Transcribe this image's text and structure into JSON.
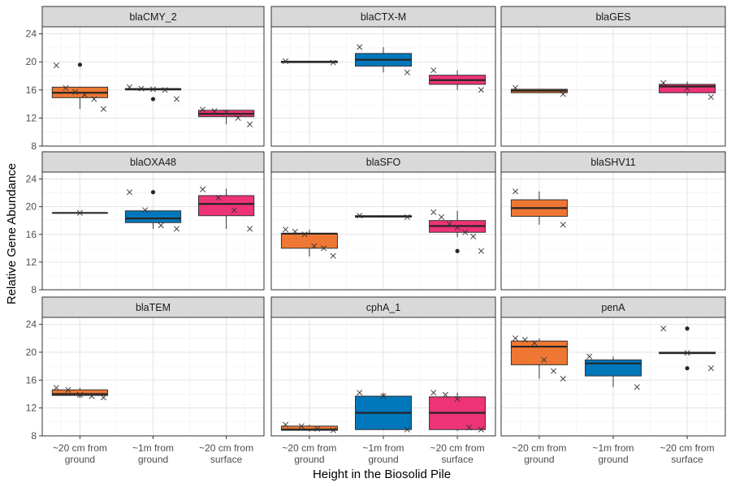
{
  "chart_data": {
    "type": "box",
    "xlabel": "Height in the Biosolid Pile",
    "ylabel": "Relative Gene Abundance",
    "ylim": [
      8,
      25
    ],
    "yticks": [
      8,
      12,
      16,
      20,
      24
    ],
    "grid": true,
    "categories": [
      [
        "~20 cm from",
        "ground"
      ],
      [
        "~1m from",
        "ground"
      ],
      [
        "~20 cm from",
        "surface"
      ]
    ],
    "colors": [
      "#ee7733",
      "#0077bb",
      "#ee3377"
    ],
    "panels": [
      {
        "name": "blaCMY_2",
        "boxes": [
          {
            "cat": 0,
            "q1": 14.9,
            "median": 15.6,
            "q3": 16.4,
            "whisker_low": 13.3,
            "whisker_high": 16.4,
            "outliers": [
              19.6
            ],
            "points": [
              19.5,
              16.3,
              15.7,
              15.3,
              14.7,
              13.3
            ]
          },
          {
            "cat": 1,
            "q1": 16.0,
            "median": 16.1,
            "q3": 16.2,
            "whisker_low": 16.0,
            "whisker_high": 16.2,
            "outliers": [
              14.7
            ],
            "points": [
              16.4,
              16.2,
              16.1,
              16.0,
              14.7
            ]
          },
          {
            "cat": 2,
            "q1": 12.2,
            "median": 12.6,
            "q3": 13.1,
            "whisker_low": 11.1,
            "whisker_high": 13.2,
            "outliers": [],
            "points": [
              13.2,
              13.0,
              12.8,
              12.0,
              11.1
            ]
          }
        ]
      },
      {
        "name": "blaCTX-M",
        "boxes": [
          {
            "cat": 0,
            "q1": 19.9,
            "median": 20.0,
            "q3": 20.1,
            "whisker_low": 19.9,
            "whisker_high": 20.1,
            "outliers": [],
            "points": [
              20.1,
              19.9
            ]
          },
          {
            "cat": 1,
            "q1": 19.4,
            "median": 20.3,
            "q3": 21.2,
            "whisker_low": 18.5,
            "whisker_high": 22.1,
            "outliers": [],
            "points": [
              22.1,
              18.5
            ]
          },
          {
            "cat": 2,
            "q1": 16.8,
            "median": 17.4,
            "q3": 18.1,
            "whisker_low": 16.0,
            "whisker_high": 18.8,
            "outliers": [],
            "points": [
              18.8,
              16.0
            ]
          }
        ]
      },
      {
        "name": "blaGES",
        "boxes": [
          {
            "cat": 0,
            "q1": 15.6,
            "median": 15.9,
            "q3": 16.1,
            "whisker_low": 15.6,
            "whisker_high": 16.1,
            "outliers": [],
            "points": [
              16.3,
              15.4
            ]
          },
          {
            "cat": 2,
            "q1": 15.6,
            "median": 16.5,
            "q3": 16.8,
            "whisker_low": 15.2,
            "whisker_high": 17.2,
            "outliers": [],
            "points": [
              17.0,
              16.2,
              15.0
            ]
          }
        ]
      },
      {
        "name": "blaOXA48",
        "boxes": [
          {
            "cat": 0,
            "q1": 19.1,
            "median": 19.1,
            "q3": 19.1,
            "whisker_low": 19.1,
            "whisker_high": 19.1,
            "outliers": [],
            "points": [
              19.1
            ]
          },
          {
            "cat": 1,
            "q1": 17.7,
            "median": 18.3,
            "q3": 19.4,
            "whisker_low": 16.8,
            "whisker_high": 19.4,
            "outliers": [
              22.1
            ],
            "points": [
              22.1,
              19.5,
              17.3,
              16.8
            ]
          },
          {
            "cat": 2,
            "q1": 18.7,
            "median": 20.4,
            "q3": 21.6,
            "whisker_low": 16.8,
            "whisker_high": 22.6,
            "outliers": [],
            "points": [
              22.5,
              21.3,
              19.5,
              16.8
            ]
          }
        ]
      },
      {
        "name": "blaSFO",
        "boxes": [
          {
            "cat": 0,
            "q1": 14.0,
            "median": 16.1,
            "q3": 16.1,
            "whisker_low": 12.8,
            "whisker_high": 16.7,
            "outliers": [],
            "points": [
              16.7,
              16.4,
              16.0,
              14.3,
              14.0,
              12.9
            ]
          },
          {
            "cat": 1,
            "q1": 18.5,
            "median": 18.6,
            "q3": 18.7,
            "whisker_low": 18.5,
            "whisker_high": 18.7,
            "outliers": [],
            "points": [
              18.7,
              18.5
            ]
          },
          {
            "cat": 2,
            "q1": 16.3,
            "median": 17.2,
            "q3": 18.0,
            "whisker_low": 15.6,
            "whisker_high": 19.4,
            "outliers": [
              13.6
            ],
            "points": [
              19.2,
              18.5,
              17.5,
              17.0,
              16.3,
              15.7,
              13.6
            ]
          }
        ]
      },
      {
        "name": "blaSHV11",
        "boxes": [
          {
            "cat": 0,
            "q1": 18.6,
            "median": 19.8,
            "q3": 21.0,
            "whisker_low": 17.4,
            "whisker_high": 22.2,
            "outliers": [],
            "points": [
              22.2,
              17.4
            ]
          }
        ]
      },
      {
        "name": "blaTEM",
        "boxes": [
          {
            "cat": 0,
            "q1": 13.8,
            "median": 14.0,
            "q3": 14.6,
            "whisker_low": 13.4,
            "whisker_high": 14.9,
            "outliers": [],
            "points": [
              14.9,
              14.6,
              13.9,
              13.7,
              13.5
            ]
          }
        ]
      },
      {
        "name": "cphA_1",
        "boxes": [
          {
            "cat": 0,
            "q1": 8.8,
            "median": 8.9,
            "q3": 9.4,
            "whisker_low": 8.6,
            "whisker_high": 9.6,
            "outliers": [],
            "points": [
              9.6,
              9.4,
              9.0,
              8.8
            ]
          },
          {
            "cat": 1,
            "q1": 8.9,
            "median": 11.3,
            "q3": 13.7,
            "whisker_low": 8.8,
            "whisker_high": 14.2,
            "outliers": [],
            "points": [
              14.2,
              13.7,
              8.9
            ]
          },
          {
            "cat": 2,
            "q1": 8.9,
            "median": 11.3,
            "q3": 13.6,
            "whisker_low": 8.7,
            "whisker_high": 14.2,
            "outliers": [],
            "points": [
              14.2,
              13.9,
              13.3,
              9.2,
              8.9
            ]
          }
        ]
      },
      {
        "name": "penA",
        "boxes": [
          {
            "cat": 0,
            "q1": 18.2,
            "median": 20.8,
            "q3": 21.6,
            "whisker_low": 16.2,
            "whisker_high": 22.0,
            "outliers": [],
            "points": [
              22.0,
              21.8,
              21.3,
              18.9,
              17.3,
              16.2
            ]
          },
          {
            "cat": 1,
            "q1": 16.6,
            "median": 18.4,
            "q3": 18.9,
            "whisker_low": 15.0,
            "whisker_high": 19.4,
            "outliers": [],
            "points": [
              19.4,
              15.0
            ]
          },
          {
            "cat": 2,
            "q1": 19.8,
            "median": 19.9,
            "q3": 20.0,
            "whisker_low": 19.8,
            "whisker_high": 20.0,
            "outliers": [
              23.4,
              17.7
            ],
            "points": [
              23.4,
              19.9,
              17.7
            ]
          }
        ]
      }
    ]
  }
}
